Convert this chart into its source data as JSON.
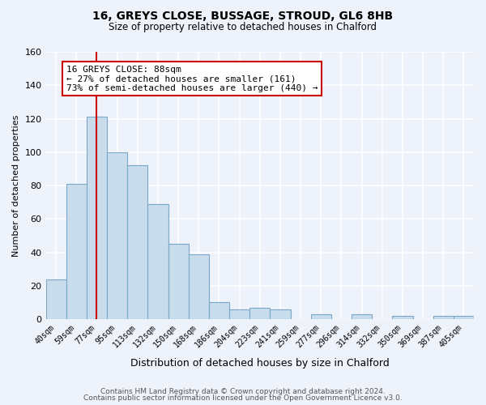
{
  "title": "16, GREYS CLOSE, BUSSAGE, STROUD, GL6 8HB",
  "subtitle": "Size of property relative to detached houses in Chalford",
  "xlabel": "Distribution of detached houses by size in Chalford",
  "ylabel": "Number of detached properties",
  "bar_labels": [
    "40sqm",
    "59sqm",
    "77sqm",
    "95sqm",
    "113sqm",
    "132sqm",
    "150sqm",
    "168sqm",
    "186sqm",
    "204sqm",
    "223sqm",
    "241sqm",
    "259sqm",
    "277sqm",
    "296sqm",
    "314sqm",
    "332sqm",
    "350sqm",
    "369sqm",
    "387sqm",
    "405sqm"
  ],
  "bar_heights": [
    24,
    81,
    121,
    100,
    92,
    69,
    45,
    39,
    10,
    6,
    7,
    6,
    0,
    3,
    0,
    3,
    0,
    2,
    0,
    2,
    2
  ],
  "bar_color": "#c8dcec",
  "bar_edge_color": "#7aa8c8",
  "vline_index": 2,
  "vline_color": "#cc0000",
  "annotation_title": "16 GREYS CLOSE: 88sqm",
  "annotation_line1": "← 27% of detached houses are smaller (161)",
  "annotation_line2": "73% of semi-detached houses are larger (440) →",
  "annotation_box_color": "#ffffff",
  "annotation_box_edge": "#cc0000",
  "ylim": [
    0,
    160
  ],
  "yticks": [
    0,
    20,
    40,
    60,
    80,
    100,
    120,
    140,
    160
  ],
  "footer1": "Contains HM Land Registry data © Crown copyright and database right 2024.",
  "footer2": "Contains public sector information licensed under the Open Government Licence v3.0.",
  "background_color": "#eef2fb",
  "grid_color": "#ffffff",
  "title_fontsize": 10,
  "subtitle_fontsize": 8.5
}
